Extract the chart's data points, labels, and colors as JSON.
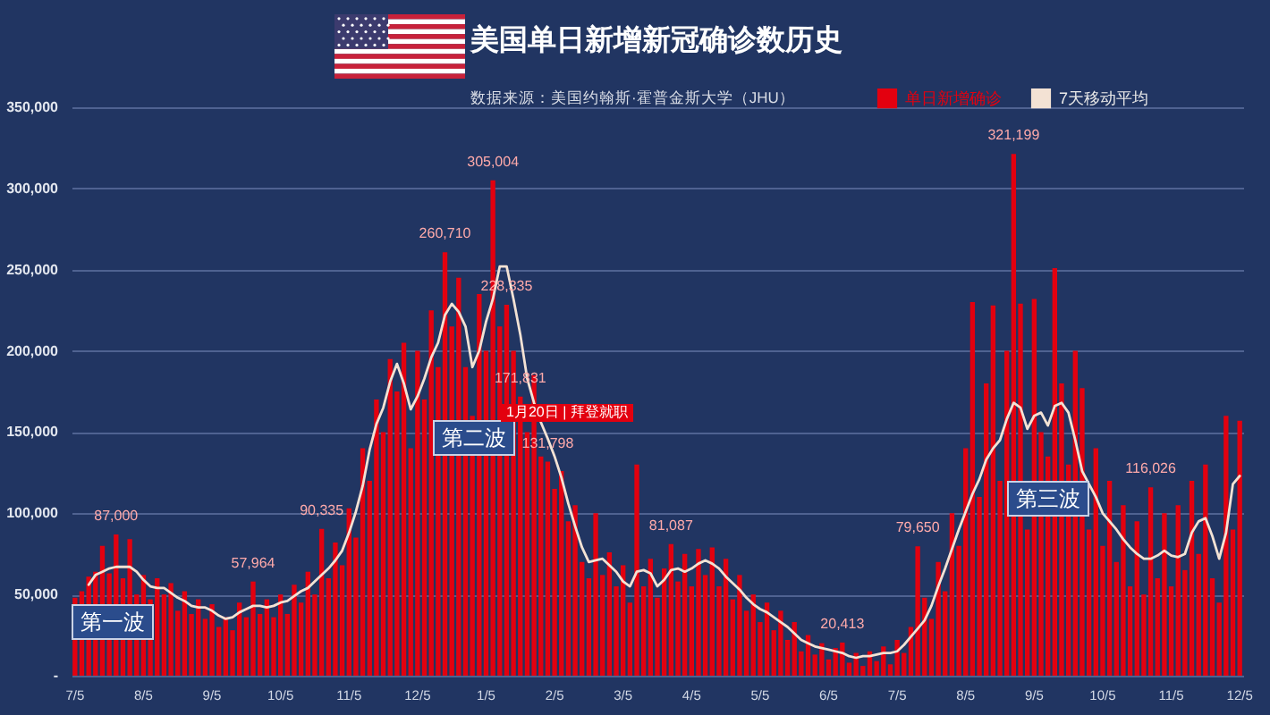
{
  "chart_data": {
    "type": "bar",
    "title": "美国单日新增新冠确诊数历史",
    "subtitle": "数据来源：美国约翰斯·霍普金斯大学（JHU）",
    "categories": [
      "7/5",
      null,
      null,
      null,
      null,
      null,
      null,
      null,
      null,
      null,
      "8/5",
      null,
      null,
      null,
      null,
      null,
      null,
      null,
      null,
      null,
      "9/5",
      null,
      null,
      null,
      null,
      null,
      null,
      null,
      null,
      null,
      "10/5",
      null,
      null,
      null,
      null,
      null,
      null,
      null,
      null,
      null,
      "11/5",
      null,
      null,
      null,
      null,
      null,
      null,
      null,
      null,
      null,
      "12/5",
      null,
      null,
      null,
      null,
      null,
      null,
      null,
      null,
      null,
      "1/5",
      null,
      null,
      null,
      null,
      null,
      null,
      null,
      null,
      null,
      "2/5",
      null,
      null,
      null,
      null,
      null,
      null,
      null,
      null,
      null,
      "3/5",
      null,
      null,
      null,
      null,
      null,
      null,
      null,
      null,
      null,
      "4/5",
      null,
      null,
      null,
      null,
      null,
      null,
      null,
      null,
      null,
      "5/5",
      null,
      null,
      null,
      null,
      null,
      null,
      null,
      null,
      null,
      "6/5",
      null,
      null,
      null,
      null,
      null,
      null,
      null,
      null,
      null,
      "7/5",
      null,
      null,
      null,
      null,
      null,
      null,
      null,
      null,
      null,
      "8/5",
      null,
      null,
      null,
      null,
      null,
      null,
      null,
      null,
      null,
      "9/5",
      null,
      null,
      null,
      null,
      null,
      null,
      null,
      null,
      null,
      "10/5",
      null,
      null,
      null,
      null,
      null,
      null,
      null,
      null,
      null,
      "11/5",
      null,
      null,
      null,
      null,
      null,
      null,
      null,
      null,
      null,
      "12/5"
    ],
    "series": [
      {
        "name": "单日新增确诊",
        "type": "bar",
        "color": "#e3000f",
        "values": [
          48000,
          52000,
          61000,
          64000,
          80000,
          63000,
          87000,
          60000,
          84000,
          50000,
          62000,
          47000,
          60000,
          50000,
          57000,
          40000,
          52000,
          38000,
          47000,
          35000,
          44000,
          30000,
          36000,
          28000,
          45000,
          36000,
          57964,
          38000,
          47000,
          36000,
          50000,
          38000,
          56000,
          45000,
          64000,
          50000,
          90335,
          60000,
          82000,
          68000,
          103000,
          85000,
          140000,
          120000,
          170000,
          150000,
          195000,
          175000,
          205000,
          140000,
          200000,
          170000,
          225000,
          190000,
          260710,
          215000,
          245000,
          190000,
          160000,
          235000,
          200000,
          305004,
          215000,
          228335,
          200000,
          171831,
          150000,
          185000,
          135000,
          131798,
          115000,
          126000,
          95000,
          105000,
          70000,
          60000,
          100000,
          62000,
          76000,
          55000,
          68000,
          45000,
          130000,
          55000,
          72000,
          48000,
          66000,
          81087,
          58000,
          75000,
          55000,
          78000,
          62000,
          79000,
          55000,
          72000,
          47000,
          62000,
          40000,
          50000,
          33000,
          45000,
          28000,
          40000,
          22000,
          33000,
          15000,
          25000,
          13000,
          20000,
          10000,
          17000,
          20413,
          8000,
          14000,
          6000,
          15000,
          9000,
          18000,
          7000,
          22000,
          14000,
          30000,
          79650,
          48000,
          35000,
          70000,
          52000,
          100000,
          80000,
          140000,
          230000,
          110000,
          180000,
          228000,
          120000,
          200000,
          321199,
          229000,
          90000,
          232000,
          150000,
          135000,
          251000,
          180000,
          130000,
          200000,
          177000,
          90000,
          140000,
          80000,
          120000,
          70000,
          105000,
          55000,
          95000,
          50000,
          116026,
          60000,
          100000,
          55000,
          105000,
          65000,
          120000,
          75000,
          130000,
          60000,
          45000,
          160000,
          90000,
          157000
        ],
        "value_labels": [
          null,
          null,
          null,
          null,
          null,
          null,
          "87,000",
          null,
          null,
          null,
          null,
          null,
          null,
          null,
          null,
          null,
          null,
          null,
          null,
          null,
          null,
          null,
          null,
          null,
          null,
          null,
          "57,964",
          null,
          null,
          null,
          null,
          null,
          null,
          null,
          null,
          null,
          "90,335",
          null,
          null,
          null,
          null,
          null,
          null,
          null,
          null,
          null,
          null,
          null,
          null,
          null,
          null,
          null,
          null,
          null,
          "260,710",
          null,
          null,
          null,
          null,
          null,
          null,
          "305,004",
          null,
          "228,335",
          null,
          "171,831",
          null,
          null,
          null,
          "131,798",
          null,
          null,
          null,
          null,
          null,
          null,
          null,
          null,
          null,
          null,
          null,
          null,
          null,
          null,
          null,
          null,
          null,
          "81,087",
          null,
          null,
          null,
          null,
          null,
          null,
          null,
          null,
          null,
          null,
          null,
          null,
          null,
          null,
          null,
          null,
          null,
          null,
          null,
          null,
          null,
          null,
          null,
          null,
          "20,413",
          null,
          null,
          null,
          null,
          null,
          null,
          null,
          null,
          null,
          null,
          "79,650",
          null,
          null,
          null,
          null,
          null,
          null,
          null,
          null,
          null,
          null,
          null,
          null,
          null,
          "321,199",
          null,
          null,
          null,
          null,
          null,
          null,
          null,
          null,
          null,
          null,
          null,
          null,
          null,
          null,
          null,
          null,
          null,
          null,
          null,
          "116,026",
          null,
          null,
          null,
          null,
          null,
          null,
          null,
          null,
          null,
          null,
          null,
          null,
          null
        ]
      },
      {
        "name": "7天移动平均",
        "type": "line",
        "color": "#f3e2d4",
        "values": [
          null,
          null,
          56000,
          62000,
          64000,
          66000,
          67000,
          67000,
          67000,
          64000,
          59000,
          55000,
          54000,
          54000,
          51000,
          48000,
          46000,
          43000,
          42000,
          42000,
          40000,
          37000,
          35000,
          36000,
          39000,
          41000,
          43000,
          43000,
          42000,
          43000,
          45000,
          46000,
          49000,
          52000,
          54000,
          58000,
          62000,
          66000,
          71000,
          77000,
          88000,
          101000,
          117000,
          139000,
          155000,
          165000,
          181000,
          192000,
          180000,
          164000,
          172000,
          183000,
          196000,
          205000,
          222000,
          229000,
          224000,
          215000,
          190000,
          200000,
          218000,
          232000,
          252000,
          252000,
          232000,
          210000,
          183000,
          168000,
          156000,
          146000,
          135000,
          122000,
          106000,
          92000,
          79000,
          70000,
          71000,
          72000,
          68000,
          64000,
          58000,
          55000,
          64000,
          65000,
          63000,
          55000,
          59000,
          65000,
          66000,
          64000,
          66000,
          69000,
          71000,
          69000,
          66000,
          61000,
          57000,
          53000,
          48000,
          44000,
          41000,
          39000,
          36000,
          33000,
          30000,
          26000,
          22000,
          20000,
          18000,
          17000,
          16000,
          15000,
          14000,
          12000,
          11000,
          12000,
          12000,
          13000,
          14000,
          14000,
          15000,
          19000,
          24000,
          29000,
          34000,
          43000,
          55000,
          66000,
          78000,
          90000,
          101000,
          112000,
          121000,
          133000,
          140000,
          145000,
          158000,
          168000,
          165000,
          152000,
          160000,
          162000,
          154000,
          166000,
          168000,
          162000,
          145000,
          126000,
          118000,
          110000,
          100000,
          95000,
          90000,
          84000,
          79000,
          75000,
          72000,
          72000,
          74000,
          77000,
          74000,
          73000,
          75000,
          88000,
          95000,
          97000,
          86000,
          72000,
          88000,
          118000,
          123000
        ]
      }
    ],
    "ylim": [
      0,
      350000
    ],
    "yticks": [
      {
        "value": 0,
        "label": "-"
      },
      {
        "value": 50000,
        "label": "50,000"
      },
      {
        "value": 100000,
        "label": "100,000"
      },
      {
        "value": 150000,
        "label": "150,000"
      },
      {
        "value": 200000,
        "label": "200,000"
      },
      {
        "value": 250000,
        "label": "250,000"
      },
      {
        "value": 300000,
        "label": "300,000"
      },
      {
        "value": 350000,
        "label": "350,000"
      }
    ],
    "grid": "y",
    "legend": "top right",
    "annotations": [
      "第一波",
      "第二波",
      "1月20日 | 拜登就职",
      "第三波"
    ]
  }
}
